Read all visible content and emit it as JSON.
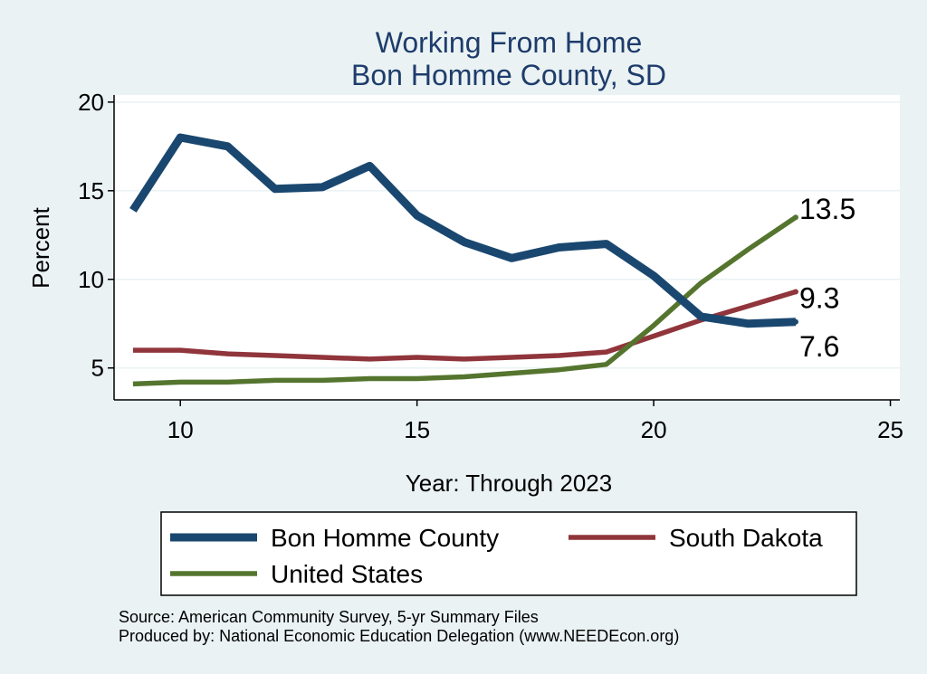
{
  "chart_data": {
    "type": "line",
    "title": "Working From Home",
    "subtitle": "Bon Homme County, SD",
    "xlabel": "Year: Through 2023",
    "ylabel": "Percent",
    "xlim": [
      8.6,
      25.2
    ],
    "ylim": [
      3.2,
      20.4
    ],
    "xticks": [
      10,
      15,
      20,
      25
    ],
    "yticks": [
      5,
      10,
      15,
      20
    ],
    "grid": true,
    "legend_position": "bottom",
    "series": [
      {
        "name": "Bon Homme County",
        "color": "#1a476f",
        "x": [
          9,
          10,
          11,
          12,
          13,
          14,
          15,
          16,
          17,
          18,
          19,
          20,
          21,
          22,
          23
        ],
        "values": [
          13.9,
          18.0,
          17.5,
          15.1,
          15.2,
          16.4,
          13.6,
          12.1,
          11.2,
          11.8,
          12.0,
          10.2,
          7.9,
          7.5,
          7.6
        ],
        "end_label": "7.6"
      },
      {
        "name": "South Dakota",
        "color": "#90353b",
        "x": [
          9,
          10,
          11,
          12,
          13,
          14,
          15,
          16,
          17,
          18,
          19,
          20,
          21,
          22,
          23
        ],
        "values": [
          6.0,
          6.0,
          5.8,
          5.7,
          5.6,
          5.5,
          5.6,
          5.5,
          5.6,
          5.7,
          5.9,
          6.8,
          7.7,
          8.5,
          9.3
        ],
        "end_label": "9.3"
      },
      {
        "name": "United States",
        "color": "#55752f",
        "x": [
          9,
          10,
          11,
          12,
          13,
          14,
          15,
          16,
          17,
          18,
          19,
          20,
          21,
          22,
          23
        ],
        "values": [
          4.1,
          4.2,
          4.2,
          4.3,
          4.3,
          4.4,
          4.4,
          4.5,
          4.7,
          4.9,
          5.2,
          7.4,
          9.8,
          11.7,
          13.5
        ],
        "end_label": "13.5"
      }
    ],
    "source_lines": [
      "Source: American Community Survey, 5-yr Summary Files",
      "Produced by: National Economic Education Delegation (www.NEEDEcon.org)"
    ]
  }
}
